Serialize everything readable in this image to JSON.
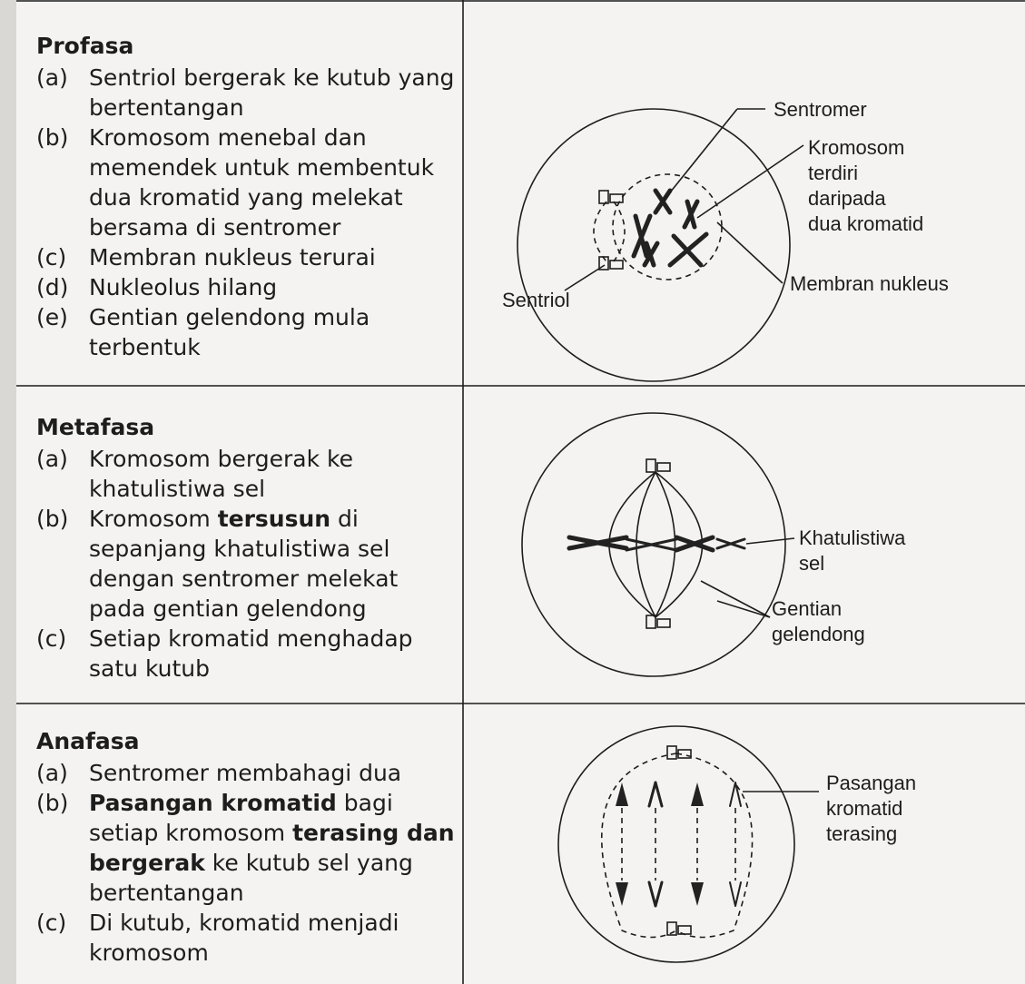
{
  "rows": [
    {
      "title": "Profasa",
      "items": [
        {
          "marker": "(a)",
          "runs": [
            {
              "text": "Sentriol bergerak ke kutub yang bertentangan"
            }
          ]
        },
        {
          "marker": "(b)",
          "runs": [
            {
              "text": "Kromosom menebal dan memendek untuk membentuk dua kromatid yang melekat bersama di sentromer"
            }
          ]
        },
        {
          "marker": "(c)",
          "runs": [
            {
              "text": "Membran nukleus terurai"
            }
          ]
        },
        {
          "marker": "(d)",
          "runs": [
            {
              "text": "Nukleolus hilang"
            }
          ]
        },
        {
          "marker": "(e)",
          "runs": [
            {
              "text": "Gentian gelendong mula terbentuk"
            }
          ]
        }
      ],
      "labels": [
        {
          "lines": [
            "Sentromer"
          ]
        },
        {
          "lines": [
            "Kromosom",
            "terdiri",
            "daripada",
            "dua kromatid"
          ]
        },
        {
          "lines": [
            "Sentriol"
          ]
        },
        {
          "lines": [
            "Membran nukleus"
          ]
        }
      ]
    },
    {
      "title": "Metafasa",
      "items": [
        {
          "marker": "(a)",
          "runs": [
            {
              "text": "Kromosom bergerak ke khatulistiwa sel"
            }
          ]
        },
        {
          "marker": "(b)",
          "runs": [
            {
              "text": "Kromosom "
            },
            {
              "text": "tersusun",
              "bold": true
            },
            {
              "text": " di sepanjang khatulistiwa sel dengan sentromer melekat pada gentian gelendong"
            }
          ]
        },
        {
          "marker": "(c)",
          "runs": [
            {
              "text": "Setiap kromatid menghadap satu kutub"
            }
          ]
        }
      ],
      "labels": [
        {
          "lines": [
            "Khatulistiwa",
            "sel"
          ]
        },
        {
          "lines": [
            "Gentian",
            "gelendong"
          ]
        }
      ]
    },
    {
      "title": "Anafasa",
      "items": [
        {
          "marker": "(a)",
          "runs": [
            {
              "text": "Sentromer membahagi dua"
            }
          ]
        },
        {
          "marker": "(b)",
          "runs": [
            {
              "text": "Pasangan kromatid",
              "bold": true
            },
            {
              "text": " bagi setiap kromosom "
            },
            {
              "text": "terasing dan bergerak",
              "bold": true
            },
            {
              "text": " ke kutub sel yang bertentangan"
            }
          ]
        },
        {
          "marker": "(c)",
          "runs": [
            {
              "text": "Di kutub, kromatid menjadi kromosom"
            }
          ]
        }
      ],
      "labels": [
        {
          "lines": [
            "Pasangan",
            "kromatid",
            "terasing"
          ]
        }
      ]
    }
  ]
}
